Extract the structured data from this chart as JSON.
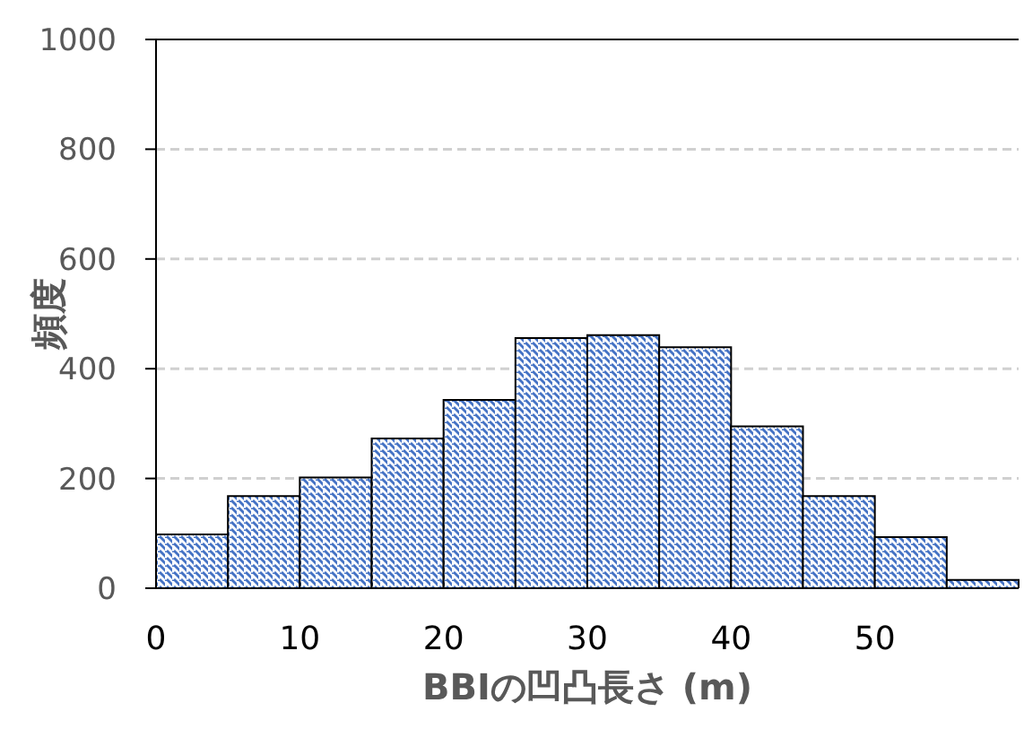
{
  "chart_data": {
    "type": "histogram",
    "xlabel": "BBIの凹凸長さ (m)",
    "ylabel": "頻度",
    "bins": [
      0,
      5,
      10,
      15,
      20,
      25,
      30,
      35,
      40,
      45,
      50,
      55,
      60
    ],
    "values": [
      98,
      168,
      202,
      273,
      343,
      456,
      461,
      439,
      295,
      168,
      93,
      15
    ],
    "color": "#4472c4",
    "xlim": [
      0,
      60
    ],
    "xticks": [
      0,
      10,
      20,
      30,
      40,
      50
    ],
    "ylim": [
      0,
      1000
    ],
    "yticks": [
      0,
      200,
      400,
      600,
      800,
      1000
    ],
    "grid": "y"
  }
}
